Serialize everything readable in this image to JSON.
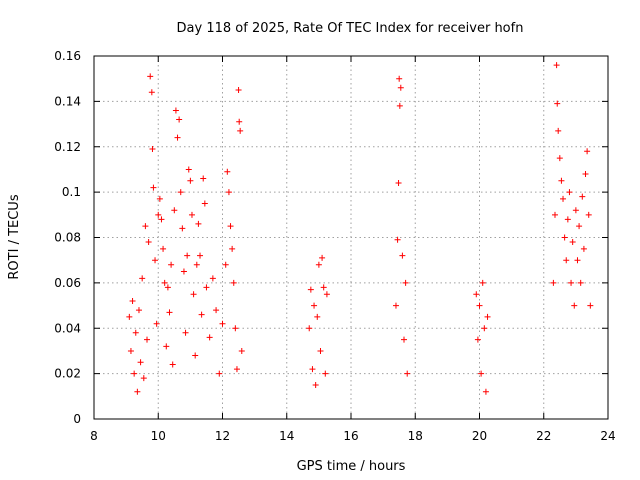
{
  "chart_data": {
    "type": "scatter",
    "title": "Day 118 of 2025, Rate Of TEC Index for receiver hofn",
    "xlabel": "GPS time / hours",
    "ylabel": "ROTI / TECUs",
    "xlim": [
      8,
      24
    ],
    "ylim": [
      0,
      0.16
    ],
    "x_ticks": [
      8,
      10,
      12,
      14,
      16,
      18,
      20,
      22,
      24
    ],
    "x_tick_labels": [
      "8",
      "10",
      "12",
      "14",
      "16",
      "18",
      "20",
      "22",
      "24"
    ],
    "y_ticks": [
      0,
      0.02,
      0.04,
      0.06,
      0.08,
      0.1,
      0.12,
      0.14,
      0.16
    ],
    "y_tick_labels": [
      "0",
      "0.02",
      "0.04",
      "0.06",
      "0.08",
      "0.1",
      "0.12",
      "0.14",
      "0.16"
    ],
    "grid": true,
    "marker": "+",
    "marker_color": "#ff0000",
    "series": [
      {
        "name": "ROTI",
        "points": [
          [
            9.1,
            0.045
          ],
          [
            9.15,
            0.03
          ],
          [
            9.2,
            0.052
          ],
          [
            9.25,
            0.02
          ],
          [
            9.3,
            0.038
          ],
          [
            9.35,
            0.012
          ],
          [
            9.4,
            0.048
          ],
          [
            9.45,
            0.025
          ],
          [
            9.5,
            0.062
          ],
          [
            9.55,
            0.018
          ],
          [
            9.6,
            0.085
          ],
          [
            9.65,
            0.035
          ],
          [
            9.7,
            0.078
          ],
          [
            9.75,
            0.151
          ],
          [
            9.8,
            0.144
          ],
          [
            9.82,
            0.119
          ],
          [
            9.85,
            0.102
          ],
          [
            9.9,
            0.07
          ],
          [
            9.95,
            0.042
          ],
          [
            10.0,
            0.09
          ],
          [
            10.05,
            0.097
          ],
          [
            10.1,
            0.088
          ],
          [
            10.15,
            0.075
          ],
          [
            10.2,
            0.06
          ],
          [
            10.25,
            0.032
          ],
          [
            10.3,
            0.058
          ],
          [
            10.35,
            0.047
          ],
          [
            10.4,
            0.068
          ],
          [
            10.45,
            0.024
          ],
          [
            10.5,
            0.092
          ],
          [
            10.55,
            0.136
          ],
          [
            10.6,
            0.124
          ],
          [
            10.65,
            0.132
          ],
          [
            10.7,
            0.1
          ],
          [
            10.75,
            0.084
          ],
          [
            10.8,
            0.065
          ],
          [
            10.85,
            0.038
          ],
          [
            10.9,
            0.072
          ],
          [
            10.95,
            0.11
          ],
          [
            11.0,
            0.105
          ],
          [
            11.05,
            0.09
          ],
          [
            11.1,
            0.055
          ],
          [
            11.15,
            0.028
          ],
          [
            11.2,
            0.068
          ],
          [
            11.25,
            0.086
          ],
          [
            11.3,
            0.072
          ],
          [
            11.35,
            0.046
          ],
          [
            11.4,
            0.106
          ],
          [
            11.45,
            0.095
          ],
          [
            11.5,
            0.058
          ],
          [
            11.6,
            0.036
          ],
          [
            11.7,
            0.062
          ],
          [
            11.8,
            0.048
          ],
          [
            11.9,
            0.02
          ],
          [
            12.0,
            0.042
          ],
          [
            12.1,
            0.068
          ],
          [
            12.15,
            0.109
          ],
          [
            12.2,
            0.1
          ],
          [
            12.25,
            0.085
          ],
          [
            12.3,
            0.075
          ],
          [
            12.35,
            0.06
          ],
          [
            12.4,
            0.04
          ],
          [
            12.45,
            0.022
          ],
          [
            12.5,
            0.145
          ],
          [
            12.52,
            0.131
          ],
          [
            12.55,
            0.127
          ],
          [
            12.6,
            0.03
          ],
          [
            14.7,
            0.04
          ],
          [
            14.75,
            0.057
          ],
          [
            14.8,
            0.022
          ],
          [
            14.85,
            0.05
          ],
          [
            14.9,
            0.015
          ],
          [
            14.95,
            0.045
          ],
          [
            15.0,
            0.068
          ],
          [
            15.05,
            0.03
          ],
          [
            15.1,
            0.071
          ],
          [
            15.15,
            0.058
          ],
          [
            15.2,
            0.02
          ],
          [
            15.25,
            0.055
          ],
          [
            17.4,
            0.05
          ],
          [
            17.45,
            0.079
          ],
          [
            17.48,
            0.104
          ],
          [
            17.5,
            0.15
          ],
          [
            17.52,
            0.138
          ],
          [
            17.55,
            0.146
          ],
          [
            17.6,
            0.072
          ],
          [
            17.65,
            0.035
          ],
          [
            17.7,
            0.06
          ],
          [
            17.75,
            0.02
          ],
          [
            19.9,
            0.055
          ],
          [
            19.95,
            0.035
          ],
          [
            20.0,
            0.05
          ],
          [
            20.05,
            0.02
          ],
          [
            20.1,
            0.06
          ],
          [
            20.15,
            0.04
          ],
          [
            20.2,
            0.012
          ],
          [
            20.25,
            0.045
          ],
          [
            22.3,
            0.06
          ],
          [
            22.35,
            0.09
          ],
          [
            22.4,
            0.156
          ],
          [
            22.42,
            0.139
          ],
          [
            22.45,
            0.127
          ],
          [
            22.5,
            0.115
          ],
          [
            22.55,
            0.105
          ],
          [
            22.6,
            0.097
          ],
          [
            22.65,
            0.08
          ],
          [
            22.7,
            0.07
          ],
          [
            22.75,
            0.088
          ],
          [
            22.8,
            0.1
          ],
          [
            22.85,
            0.06
          ],
          [
            22.9,
            0.078
          ],
          [
            22.95,
            0.05
          ],
          [
            23.0,
            0.092
          ],
          [
            23.05,
            0.07
          ],
          [
            23.1,
            0.085
          ],
          [
            23.15,
            0.06
          ],
          [
            23.2,
            0.098
          ],
          [
            23.25,
            0.075
          ],
          [
            23.3,
            0.108
          ],
          [
            23.35,
            0.118
          ],
          [
            23.4,
            0.09
          ],
          [
            23.45,
            0.05
          ]
        ]
      }
    ]
  }
}
